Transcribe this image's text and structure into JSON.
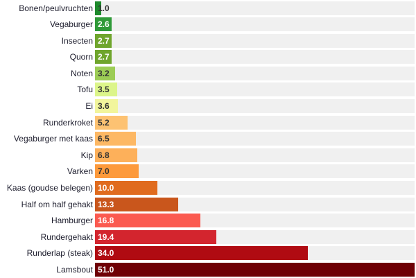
{
  "chart_data": {
    "type": "bar",
    "orientation": "horizontal",
    "xlim": [
      0,
      51
    ],
    "categories": [
      "Bonen/peulvruchten",
      "Vegaburger",
      "Insecten",
      "Quorn",
      "Noten",
      "Tofu",
      "Ei",
      "Runderkroket",
      "Vegaburger met kaas",
      "Kip",
      "Varken",
      "Kaas (goudse belegen)",
      "Half om half gehakt",
      "Hamburger",
      "Rundergehakt",
      "Runderlap (steak)",
      "Lamsbout"
    ],
    "values": [
      1.0,
      2.6,
      2.7,
      2.7,
      3.2,
      3.5,
      3.6,
      5.2,
      6.5,
      6.8,
      7.0,
      10.0,
      13.3,
      16.8,
      19.4,
      34.0,
      51.0
    ],
    "labels": [
      "1.0",
      "2.6",
      "2.7",
      "2.7",
      "3.2",
      "3.5",
      "3.6",
      "5.2",
      "6.5",
      "6.8",
      "7.0",
      "10.0",
      "13.3",
      "16.8",
      "19.4",
      "34.0",
      "51.0"
    ],
    "colors": [
      "#1e8a2c",
      "#2f9a38",
      "#6fa52c",
      "#6fa52c",
      "#9ccc55",
      "#dcf58a",
      "#f2f59c",
      "#fdc272",
      "#fdb864",
      "#fdb05a",
      "#fd9a3c",
      "#e06b1e",
      "#c9561c",
      "#fb5a50",
      "#d3252e",
      "#b00b12",
      "#6f0005"
    ],
    "value_text_colors": [
      "#333333",
      "#ffffff",
      "#ffffff",
      "#ffffff",
      "#333333",
      "#333333",
      "#333333",
      "#333333",
      "#333333",
      "#333333",
      "#333333",
      "#ffffff",
      "#ffffff",
      "#ffffff",
      "#ffffff",
      "#ffffff",
      "#ffffff"
    ]
  }
}
